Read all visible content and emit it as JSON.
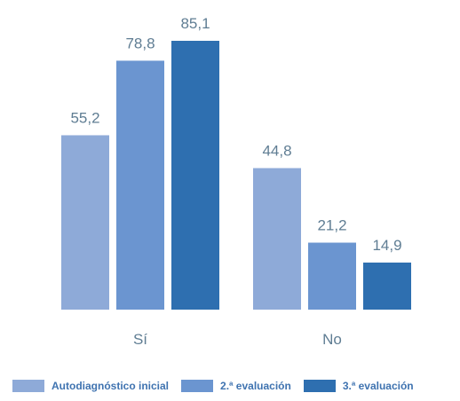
{
  "chart_data": {
    "type": "bar",
    "categories": [
      "Sí",
      "No"
    ],
    "series": [
      {
        "name": "Autodiagnóstico inicial",
        "values": [
          55.2,
          44.8
        ],
        "labels": [
          "55,2",
          "44,8"
        ],
        "color": "#8eaad8"
      },
      {
        "name": "2.ª evaluación",
        "values": [
          78.8,
          21.2
        ],
        "labels": [
          "78,8",
          "21,2"
        ],
        "color": "#6b95d0"
      },
      {
        "name": "3.ª evaluación",
        "values": [
          85.1,
          14.9
        ],
        "labels": [
          "85,1",
          "14,9"
        ],
        "color": "#2e6fb0"
      }
    ],
    "ylim": [
      0,
      100
    ],
    "grid": false,
    "legend_position": "bottom"
  },
  "colors": {
    "label_text": "#5f7d93",
    "legend_text": "#3f73b0"
  }
}
